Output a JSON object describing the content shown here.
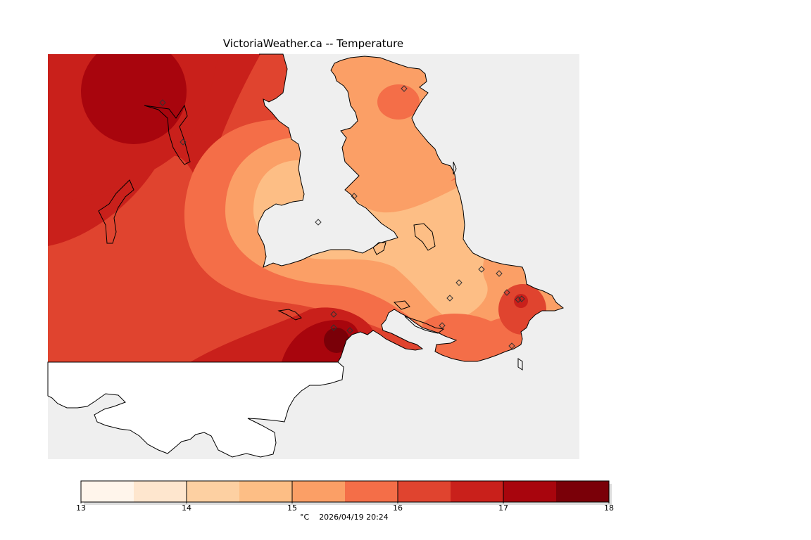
{
  "title": "VictoriaWeather.ca -- Temperature",
  "colorbar": {
    "min": 13,
    "max": 18,
    "step": 0.5,
    "tick_labels": [
      "13",
      "14",
      "15",
      "16",
      "17",
      "18"
    ],
    "colors": [
      "#fff5eb",
      "#fee6ce",
      "#fdd0a2",
      "#fdbe85",
      "#fb9f66",
      "#f46e48",
      "#e0442f",
      "#c9201b",
      "#a8050d",
      "#7a0008"
    ]
  },
  "footer": {
    "unit": "°C",
    "timestamp": "2026/04/19 20:24"
  },
  "colors": {
    "land_outside_grid": "#ffffff",
    "water": "#efefef",
    "coastline": "#000000"
  }
}
